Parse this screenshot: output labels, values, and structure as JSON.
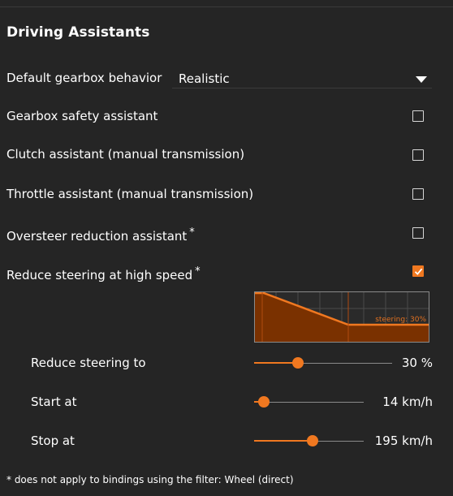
{
  "section": {
    "title": "Driving Assistants"
  },
  "gearbox": {
    "label": "Default gearbox behavior",
    "selected": "Realistic"
  },
  "options": [
    {
      "label": "Gearbox safety assistant",
      "asterisk": "",
      "checked": false
    },
    {
      "label": "Clutch assistant (manual transmission)",
      "asterisk": "",
      "checked": false
    },
    {
      "label": "Throttle assistant (manual transmission)",
      "asterisk": "",
      "checked": false
    },
    {
      "label": "Oversteer reduction assistant",
      "asterisk": "*",
      "checked": false
    },
    {
      "label": "Reduce steering at high speed",
      "asterisk": "*",
      "checked": true
    }
  ],
  "graph": {
    "label": "steering: 30%"
  },
  "sliders": [
    {
      "label": "Reduce steering to",
      "value": "30 %",
      "fraction": 0.3
    },
    {
      "label": "Start at",
      "value": "14 km/h",
      "fraction": 0.04
    },
    {
      "label": "Stop at",
      "value": "195 km/h",
      "fraction": 0.54
    }
  ],
  "footnote": "* does not apply to bindings using the filter: Wheel (direct)",
  "colors": {
    "accent": "#f07820",
    "background": "#252525",
    "graph_fill": "#7a3100"
  }
}
